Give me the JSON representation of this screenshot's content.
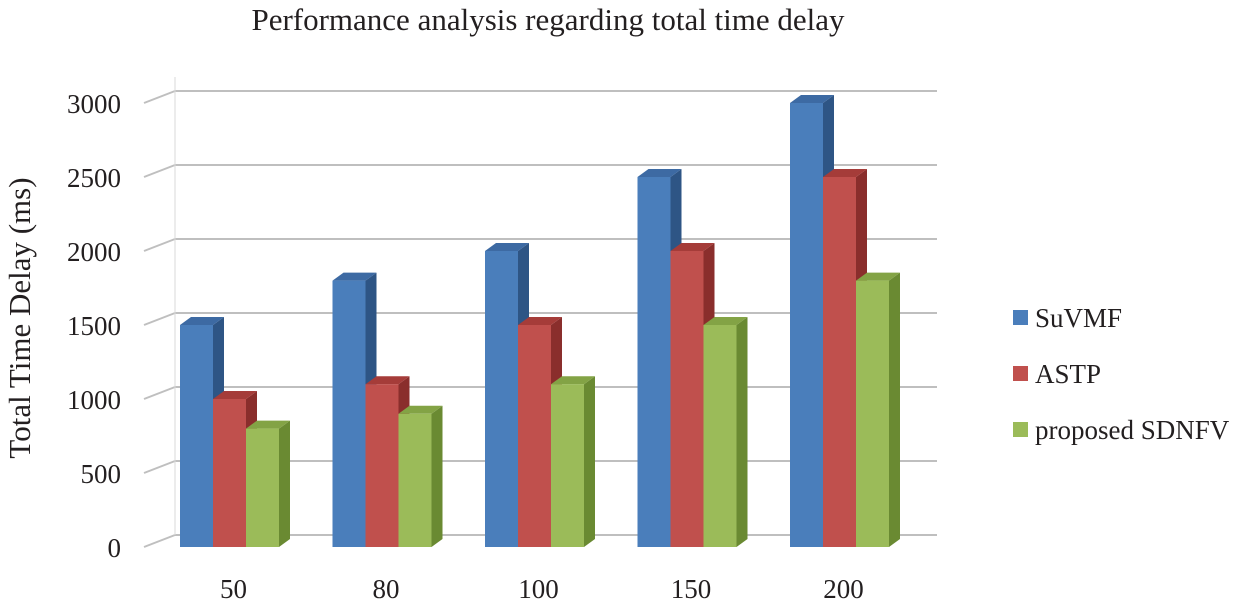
{
  "chart_data": {
    "type": "bar",
    "title": "Performance analysis regarding  total time delay",
    "xlabel": "",
    "ylabel": "Total Time Delay (ms)",
    "categories": [
      "50",
      "80",
      "100",
      "150",
      "200"
    ],
    "series": [
      {
        "name": "SuVMF",
        "values": [
          1500,
          1800,
          2000,
          2500,
          3000
        ],
        "color": "#4a7ebb",
        "side_color": "#2e5585",
        "top_color": "#3d6aa3"
      },
      {
        "name": "ASTP",
        "values": [
          1000,
          1100,
          1500,
          2000,
          2500
        ],
        "color": "#c0504d",
        "side_color": "#8a2e2c",
        "top_color": "#a53c39"
      },
      {
        "name": "proposed SDNFV",
        "values": [
          800,
          900,
          1100,
          1500,
          1800
        ],
        "color": "#9bbb59",
        "side_color": "#6a8a32",
        "top_color": "#83a345"
      }
    ],
    "yticks": [
      "0",
      "500",
      "1000",
      "1500",
      "2000",
      "2500",
      "3000"
    ],
    "ylim": [
      0,
      3000
    ],
    "grid": true,
    "legend": "right"
  }
}
